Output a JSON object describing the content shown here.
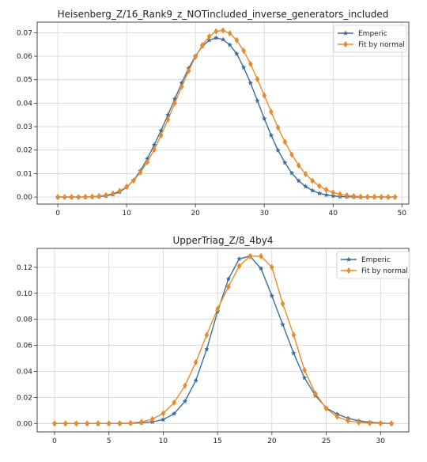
{
  "chart_data": [
    {
      "type": "line",
      "title": "Heisenberg_Z/16_Rank9_z_NOTincluded_inverse_generators_included",
      "xlabel": "",
      "ylabel": "",
      "xlim": [
        -3,
        51
      ],
      "ylim": [
        -0.003,
        0.0745
      ],
      "xticks": [
        0,
        10,
        20,
        30,
        40,
        50
      ],
      "yticks": [
        0.0,
        0.01,
        0.02,
        0.03,
        0.04,
        0.05,
        0.06,
        0.07
      ],
      "ytick_decimals": 2,
      "grid": true,
      "legend": "top-right",
      "x": [
        0,
        1,
        2,
        3,
        4,
        5,
        6,
        7,
        8,
        9,
        10,
        11,
        12,
        13,
        14,
        15,
        16,
        17,
        18,
        19,
        20,
        21,
        22,
        23,
        24,
        25,
        26,
        27,
        28,
        29,
        30,
        31,
        32,
        33,
        34,
        35,
        36,
        37,
        38,
        39,
        40,
        41,
        42,
        43,
        44,
        45,
        46,
        47,
        48,
        49
      ],
      "series": [
        {
          "name": "Emperic",
          "color": "#3c6d9a",
          "marker": "star",
          "values": [
            0.0,
            0.0,
            0.0,
            0.0,
            0.0,
            0.0001,
            0.0002,
            0.0005,
            0.0011,
            0.0022,
            0.0042,
            0.0071,
            0.0112,
            0.0163,
            0.0222,
            0.0283,
            0.035,
            0.0418,
            0.0486,
            0.0548,
            0.0601,
            0.0642,
            0.0668,
            0.0678,
            0.0671,
            0.0648,
            0.061,
            0.0552,
            0.0486,
            0.041,
            0.0334,
            0.0263,
            0.0199,
            0.0146,
            0.0102,
            0.0069,
            0.0045,
            0.0028,
            0.0016,
            0.0009,
            0.0005,
            0.0002,
            0.0001,
            0.0,
            0.0,
            0.0,
            0.0,
            0.0,
            0.0,
            0.0
          ]
        },
        {
          "name": "Fit by normal",
          "color": "#e8892b",
          "marker": "diamond",
          "values": [
            0.0,
            0.0,
            0.0,
            0.0,
            0.0001,
            0.0002,
            0.0004,
            0.0008,
            0.0015,
            0.0026,
            0.0044,
            0.007,
            0.0105,
            0.0149,
            0.0202,
            0.0263,
            0.033,
            0.04,
            0.047,
            0.0537,
            0.0597,
            0.0647,
            0.0684,
            0.0706,
            0.071,
            0.0697,
            0.0668,
            0.0623,
            0.0567,
            0.0502,
            0.0433,
            0.0363,
            0.0296,
            0.0235,
            0.0181,
            0.0135,
            0.0098,
            0.0069,
            0.0047,
            0.0031,
            0.0019,
            0.0012,
            0.0007,
            0.0004,
            0.0002,
            0.0001,
            0.0001,
            0.0,
            0.0,
            0.0
          ]
        }
      ]
    },
    {
      "type": "line",
      "title": "UpperTriag_Z/8_4by4",
      "xlabel": "",
      "ylabel": "",
      "xlim": [
        -1.6,
        32.6
      ],
      "ylim": [
        -0.0065,
        0.1345
      ],
      "xticks": [
        0,
        5,
        10,
        15,
        20,
        25,
        30
      ],
      "yticks": [
        0.0,
        0.02,
        0.04,
        0.06,
        0.08,
        0.1,
        0.12
      ],
      "ytick_decimals": 2,
      "grid": true,
      "legend": "top-right",
      "x": [
        0,
        1,
        2,
        3,
        4,
        5,
        6,
        7,
        8,
        9,
        10,
        11,
        12,
        13,
        14,
        15,
        16,
        17,
        18,
        19,
        20,
        21,
        22,
        23,
        24,
        25,
        26,
        27,
        28,
        29,
        30,
        31
      ],
      "series": [
        {
          "name": "Emperic",
          "color": "#3c6d9a",
          "marker": "star",
          "values": [
            0.0,
            0.0,
            0.0,
            0.0,
            0.0,
            0.0,
            0.0,
            0.0002,
            0.0005,
            0.0012,
            0.003,
            0.0075,
            0.017,
            0.033,
            0.057,
            0.086,
            0.111,
            0.1265,
            0.1285,
            0.119,
            0.098,
            0.076,
            0.054,
            0.035,
            0.0215,
            0.012,
            0.0072,
            0.004,
            0.002,
            0.001,
            0.0004,
            0.0
          ]
        },
        {
          "name": "Fit by normal",
          "color": "#e8892b",
          "marker": "diamond",
          "values": [
            0.0,
            0.0,
            0.0,
            0.0,
            0.0,
            0.0,
            0.0001,
            0.0004,
            0.0012,
            0.0033,
            0.0078,
            0.016,
            0.029,
            0.047,
            0.068,
            0.088,
            0.105,
            0.121,
            0.1285,
            0.1285,
            0.12,
            0.092,
            0.068,
            0.041,
            0.023,
            0.0115,
            0.0052,
            0.0021,
            0.0008,
            0.0003,
            0.0001,
            0.0
          ]
        }
      ]
    }
  ]
}
